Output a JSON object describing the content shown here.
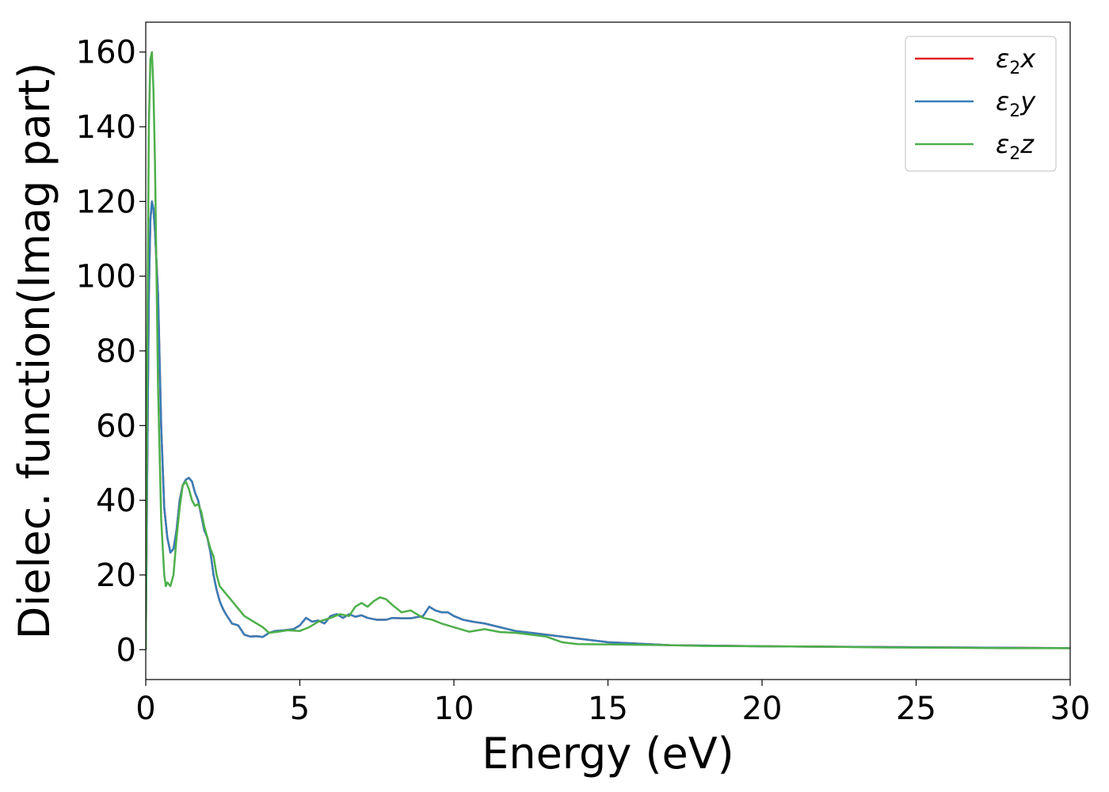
{
  "chart_data": {
    "type": "line",
    "xlabel": "Energy (eV)",
    "ylabel": "Dielec. function(Imag part)",
    "xlim": [
      0,
      30
    ],
    "ylim": [
      -8,
      168
    ],
    "xticks": [
      0,
      5,
      10,
      15,
      20,
      25,
      30
    ],
    "yticks": [
      0,
      20,
      40,
      60,
      80,
      100,
      120,
      140,
      160
    ],
    "grid": false,
    "legend_position": "top-right",
    "series": [
      {
        "name": "ε₂x",
        "legend_base": "ε",
        "legend_sub": "2",
        "legend_var": "x",
        "color": "#e41a1c",
        "x": [
          0,
          0.05,
          0.1,
          0.15,
          0.2,
          0.25,
          0.3,
          0.4,
          0.5,
          0.6,
          0.7,
          0.8,
          0.9,
          1.0,
          1.1,
          1.2,
          1.3,
          1.4,
          1.5,
          1.6,
          1.7,
          1.8,
          1.9,
          2.0,
          2.1,
          2.2,
          2.3,
          2.4,
          2.5,
          2.6,
          2.8,
          3.0,
          3.2,
          3.4,
          3.6,
          3.8,
          4.0,
          4.2,
          4.5,
          4.8,
          5.0,
          5.2,
          5.4,
          5.6,
          5.8,
          6.0,
          6.2,
          6.4,
          6.6,
          6.8,
          7.0,
          7.2,
          7.5,
          7.8,
          8.0,
          8.3,
          8.6,
          9.0,
          9.2,
          9.4,
          9.6,
          9.8,
          10.0,
          10.3,
          10.6,
          11.0,
          11.5,
          12.0,
          12.5,
          13.0,
          13.5,
          14.0,
          14.5,
          15.0,
          16.0,
          17.0,
          18.0,
          19.0,
          20.0,
          22.0,
          24.0,
          26.0,
          28.0,
          30.0
        ],
        "values": [
          0,
          50,
          95,
          115,
          120,
          118,
          112,
          95,
          60,
          38,
          30,
          26,
          27,
          32,
          40,
          44,
          45.5,
          46,
          45,
          42,
          40,
          36,
          32,
          30,
          26,
          20,
          16,
          13,
          11,
          9.5,
          7,
          6.5,
          4,
          3.5,
          3.6,
          3.4,
          4.5,
          5,
          5.2,
          5.5,
          6.5,
          8.5,
          7.5,
          7.8,
          7,
          9,
          9.5,
          8.5,
          9.5,
          8.8,
          9.2,
          8.5,
          8,
          8,
          8.5,
          8.4,
          8.4,
          9,
          11.5,
          10.5,
          10,
          10,
          9,
          8,
          7.5,
          7,
          6,
          5,
          4.5,
          4,
          3.5,
          3,
          2.5,
          2,
          1.6,
          1.2,
          1.1,
          1.0,
          0.9,
          0.8,
          0.7,
          0.6,
          0.5,
          0.4
        ]
      },
      {
        "name": "ε₂y",
        "legend_base": "ε",
        "legend_sub": "2",
        "legend_var": "y",
        "color": "#377eb8",
        "x": [
          0,
          0.05,
          0.1,
          0.15,
          0.2,
          0.25,
          0.3,
          0.4,
          0.5,
          0.6,
          0.7,
          0.8,
          0.9,
          1.0,
          1.1,
          1.2,
          1.3,
          1.4,
          1.5,
          1.6,
          1.7,
          1.8,
          1.9,
          2.0,
          2.1,
          2.2,
          2.3,
          2.4,
          2.5,
          2.6,
          2.8,
          3.0,
          3.2,
          3.4,
          3.6,
          3.8,
          4.0,
          4.2,
          4.5,
          4.8,
          5.0,
          5.2,
          5.4,
          5.6,
          5.8,
          6.0,
          6.2,
          6.4,
          6.6,
          6.8,
          7.0,
          7.2,
          7.5,
          7.8,
          8.0,
          8.3,
          8.6,
          9.0,
          9.2,
          9.4,
          9.6,
          9.8,
          10.0,
          10.3,
          10.6,
          11.0,
          11.5,
          12.0,
          12.5,
          13.0,
          13.5,
          14.0,
          14.5,
          15.0,
          16.0,
          17.0,
          18.0,
          19.0,
          20.0,
          22.0,
          24.0,
          26.0,
          28.0,
          30.0
        ],
        "values": [
          0,
          50,
          95,
          115,
          120,
          118,
          112,
          95,
          60,
          38,
          30,
          26,
          27,
          32,
          40,
          44,
          45.5,
          46,
          45,
          42,
          40,
          36,
          32,
          30,
          26,
          20,
          16,
          13,
          11,
          9.5,
          7,
          6.5,
          4,
          3.5,
          3.6,
          3.4,
          4.5,
          5,
          5.2,
          5.5,
          6.5,
          8.5,
          7.5,
          7.8,
          7,
          9,
          9.5,
          8.5,
          9.5,
          8.8,
          9.2,
          8.5,
          8,
          8,
          8.5,
          8.4,
          8.4,
          9,
          11.5,
          10.5,
          10,
          10,
          9,
          8,
          7.5,
          7,
          6,
          5,
          4.5,
          4,
          3.5,
          3,
          2.5,
          2,
          1.6,
          1.2,
          1.1,
          1.0,
          0.9,
          0.8,
          0.7,
          0.6,
          0.5,
          0.4
        ]
      },
      {
        "name": "ε₂z",
        "legend_base": "ε",
        "legend_sub": "2",
        "legend_var": "z",
        "color": "#4daf4a",
        "x": [
          0,
          0.05,
          0.1,
          0.15,
          0.2,
          0.25,
          0.3,
          0.35,
          0.4,
          0.5,
          0.6,
          0.65,
          0.7,
          0.8,
          0.9,
          1.0,
          1.1,
          1.2,
          1.3,
          1.4,
          1.5,
          1.6,
          1.7,
          1.8,
          1.9,
          2.0,
          2.1,
          2.2,
          2.3,
          2.4,
          2.6,
          2.8,
          3.0,
          3.2,
          3.5,
          3.8,
          4.0,
          4.3,
          4.6,
          5.0,
          5.3,
          5.6,
          6.0,
          6.3,
          6.6,
          6.8,
          7.0,
          7.2,
          7.4,
          7.6,
          7.8,
          8.0,
          8.3,
          8.6,
          9.0,
          9.3,
          9.6,
          10.0,
          10.5,
          11.0,
          11.5,
          12.0,
          12.5,
          13.0,
          13.5,
          14.0,
          15.0,
          16.0,
          17.0,
          18.0,
          20.0,
          22.0,
          24.0,
          26.0,
          28.0,
          30.0
        ],
        "values": [
          0,
          80,
          140,
          158,
          160,
          150,
          130,
          100,
          70,
          35,
          20,
          17,
          18,
          17,
          20,
          30,
          38,
          44,
          45,
          43,
          40,
          38.5,
          39,
          37,
          33,
          30,
          27,
          25,
          20,
          17,
          15,
          13,
          11,
          9,
          7.5,
          6,
          4.5,
          4.8,
          5.2,
          5,
          6,
          7.5,
          8.5,
          9.5,
          9,
          11.5,
          12.5,
          11.5,
          13,
          14,
          13.5,
          12,
          10,
          10.5,
          8.5,
          8,
          7,
          6,
          4.8,
          5.5,
          4.7,
          4.5,
          4,
          3.5,
          2,
          1.5,
          1.4,
          1.3,
          1.2,
          1.0,
          0.9,
          0.8,
          0.6,
          0.5,
          0.4,
          0.4
        ]
      }
    ]
  }
}
